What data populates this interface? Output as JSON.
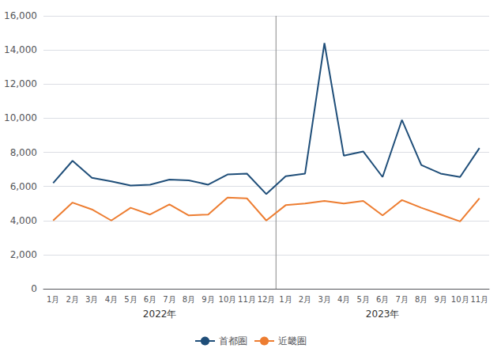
{
  "chart_data": {
    "type": "line",
    "categories": [
      "1月",
      "2月",
      "3月",
      "4月",
      "5月",
      "6月",
      "7月",
      "8月",
      "9月",
      "10月",
      "11月",
      "12月",
      "1月",
      "2月",
      "3月",
      "4月",
      "5月",
      "6月",
      "7月",
      "8月",
      "9月",
      "10月",
      "11月"
    ],
    "series": [
      {
        "name": "首都圏",
        "color": "#1F4E79",
        "values": [
          6200,
          7500,
          6500,
          6300,
          6050,
          6100,
          6400,
          6350,
          6100,
          6700,
          6750,
          5550,
          6600,
          6750,
          14400,
          7800,
          8050,
          6550,
          9900,
          7250,
          6750,
          6550,
          8250
        ]
      },
      {
        "name": "近畿圏",
        "color": "#ED7D31",
        "values": [
          4000,
          5050,
          4650,
          4000,
          4750,
          4350,
          4950,
          4300,
          4350,
          5350,
          5300,
          4000,
          4900,
          5000,
          5150,
          5000,
          5150,
          4300,
          5200,
          4750,
          4350,
          3950,
          5300
        ]
      }
    ],
    "annotations": [
      {
        "text": "2022年",
        "first": 0,
        "last": 11
      },
      {
        "text": "2023年",
        "first": 12,
        "last": 22
      }
    ],
    "ylim": [
      0,
      16000
    ],
    "yticks": [
      0,
      {
        "value": 2000,
        "label": "2,000"
      },
      {
        "value": 4000,
        "label": "4,000"
      },
      {
        "value": 6000,
        "label": "6,000"
      },
      {
        "value": 8000,
        "label": "8,000"
      },
      {
        "value": 10000,
        "label": "10,000"
      },
      {
        "value": 12000,
        "label": "12,000"
      },
      {
        "value": 14000,
        "label": "14,000"
      },
      {
        "value": 16000,
        "label": "16,000"
      }
    ],
    "grid": true,
    "legend": "bottom"
  }
}
